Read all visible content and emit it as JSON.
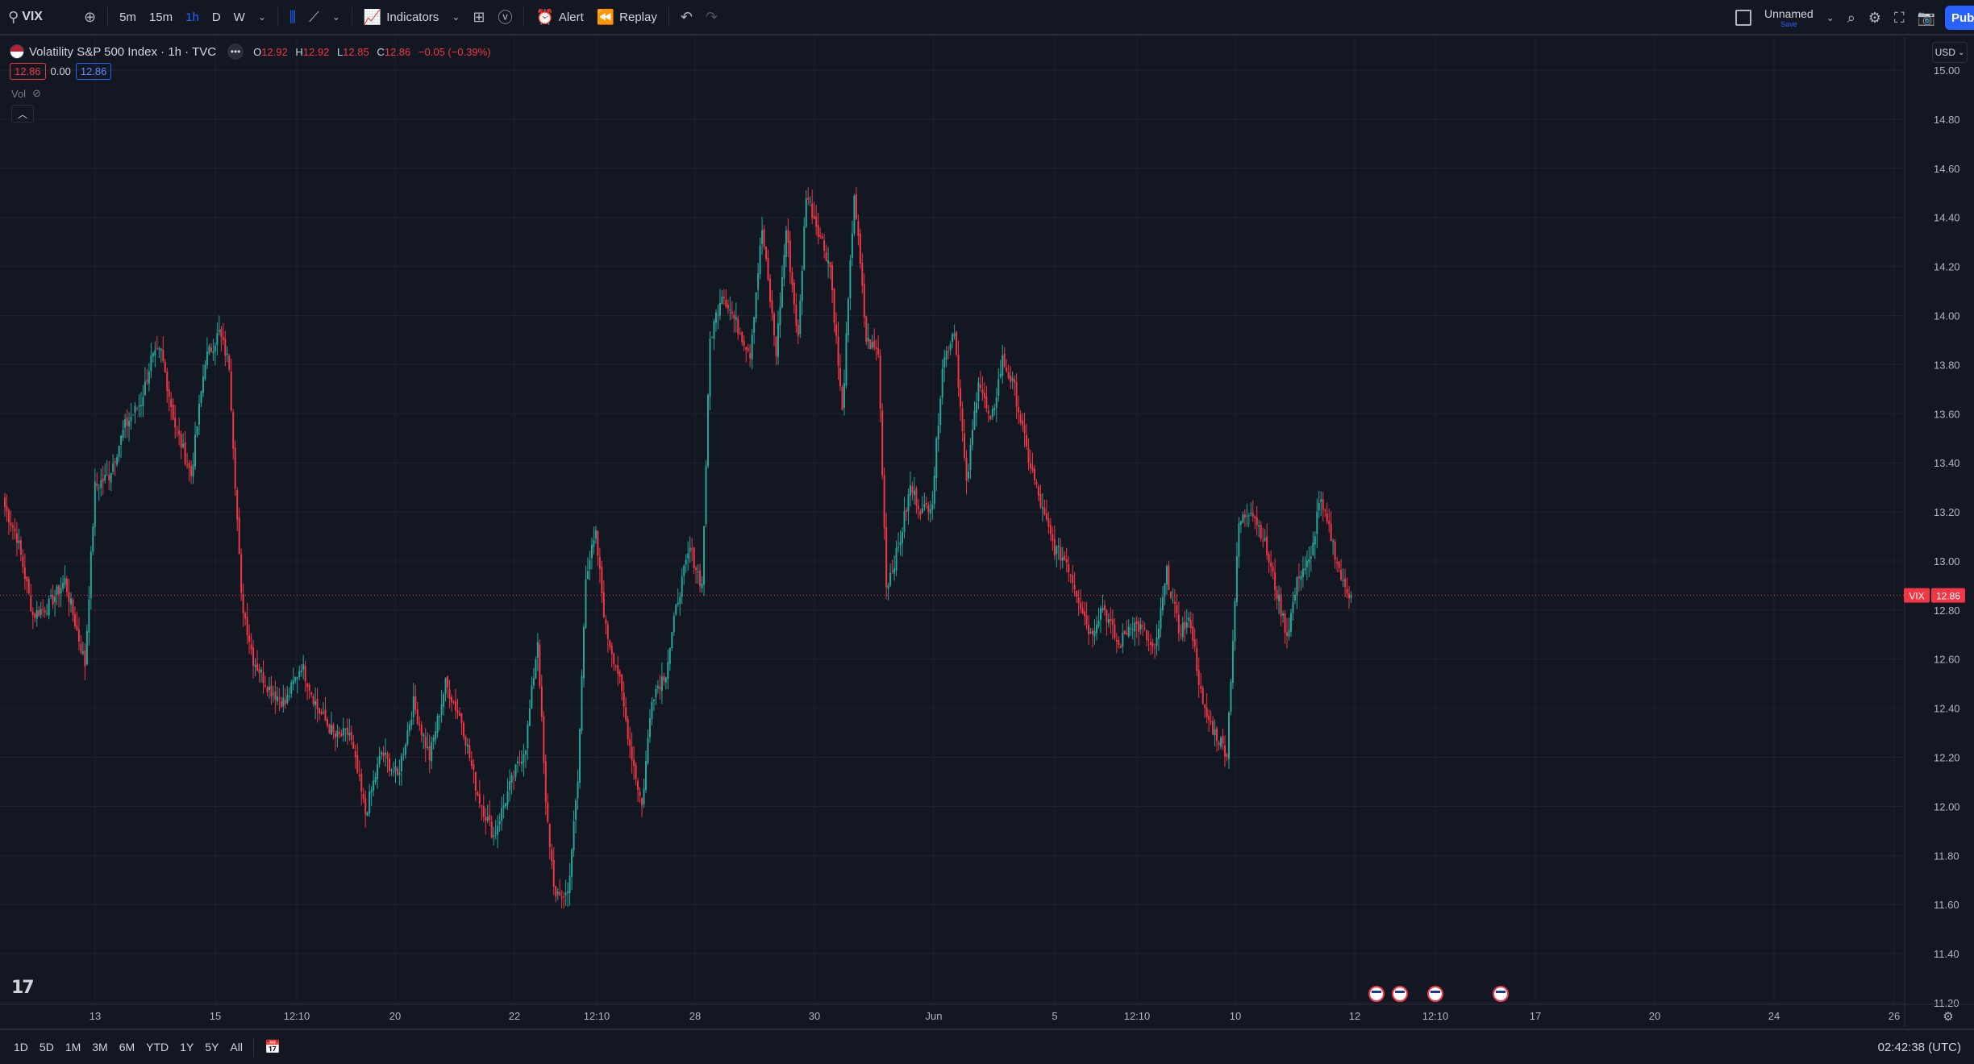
{
  "toolbar": {
    "symbol": "VIX",
    "intervals": [
      "5m",
      "15m",
      "1h",
      "D",
      "W"
    ],
    "selected_interval": "1h",
    "indicators_label": "Indicators",
    "alert_label": "Alert",
    "replay_label": "Replay",
    "layout_name": "Unnamed",
    "layout_save": "Save",
    "publish_label": "Pub"
  },
  "legend": {
    "title": "Volatility S&P 500 Index · 1h · TVC",
    "ohlc": [
      {
        "k": "O",
        "v": "12.92"
      },
      {
        "k": "H",
        "v": "12.92"
      },
      {
        "k": "L",
        "v": "12.85"
      },
      {
        "k": "C",
        "v": "12.86"
      }
    ],
    "change": "−0.05 (−0.39%)",
    "bid": "12.86",
    "spread": "0.00",
    "ask": "12.86",
    "vol_label": "Vol"
  },
  "currency": "USD",
  "chart_data": {
    "type": "candlestick",
    "title": "Volatility S&P 500 Index · 1h · TVC",
    "ylim": [
      11.2,
      15.2
    ],
    "y_ticks": [
      "15.00",
      "14.80",
      "14.60",
      "14.40",
      "14.20",
      "14.00",
      "13.80",
      "13.60",
      "13.40",
      "13.20",
      "13.00",
      "12.80",
      "12.60",
      "12.40",
      "12.20",
      "12.00",
      "11.80",
      "11.60",
      "11.40",
      "11.20"
    ],
    "x_ticks": [
      "13",
      "15",
      "12:10",
      "20",
      "22",
      "12:10",
      "28",
      "30",
      "Jun",
      "5",
      "12:10",
      "10",
      "12",
      "12:10",
      "17",
      "20",
      "24",
      "26"
    ],
    "last_price": 12.86,
    "last_price_label": "12.86",
    "symbol_tag": "VIX",
    "colors": {
      "up": "#26a69a",
      "down": "#f23645",
      "grid": "#1e222d",
      "text": "#b2b5be"
    },
    "anchors": [
      [
        0,
        13.22
      ],
      [
        6,
        13.1
      ],
      [
        14,
        12.78
      ],
      [
        22,
        12.82
      ],
      [
        30,
        12.92
      ],
      [
        40,
        12.58
      ],
      [
        45,
        13.3
      ],
      [
        52,
        13.35
      ],
      [
        60,
        13.55
      ],
      [
        68,
        13.65
      ],
      [
        73,
        13.82
      ],
      [
        78,
        13.85
      ],
      [
        85,
        13.55
      ],
      [
        93,
        13.35
      ],
      [
        100,
        13.82
      ],
      [
        107,
        13.93
      ],
      [
        112,
        13.8
      ],
      [
        118,
        12.85
      ],
      [
        124,
        12.6
      ],
      [
        132,
        12.48
      ],
      [
        140,
        12.42
      ],
      [
        148,
        12.58
      ],
      [
        156,
        12.4
      ],
      [
        165,
        12.28
      ],
      [
        172,
        12.3
      ],
      [
        180,
        11.97
      ],
      [
        188,
        12.22
      ],
      [
        196,
        12.12
      ],
      [
        204,
        12.42
      ],
      [
        212,
        12.2
      ],
      [
        220,
        12.5
      ],
      [
        228,
        12.35
      ],
      [
        236,
        12.05
      ],
      [
        244,
        11.88
      ],
      [
        252,
        12.08
      ],
      [
        260,
        12.25
      ],
      [
        266,
        12.68
      ],
      [
        270,
        12.0
      ],
      [
        275,
        11.62
      ],
      [
        281,
        11.65
      ],
      [
        286,
        12.1
      ],
      [
        290,
        12.95
      ],
      [
        295,
        13.1
      ],
      [
        300,
        12.72
      ],
      [
        306,
        12.55
      ],
      [
        312,
        12.25
      ],
      [
        318,
        12.0
      ],
      [
        323,
        12.45
      ],
      [
        330,
        12.55
      ],
      [
        336,
        12.85
      ],
      [
        342,
        13.05
      ],
      [
        348,
        12.9
      ],
      [
        352,
        13.9
      ],
      [
        358,
        14.1
      ],
      [
        366,
        13.95
      ],
      [
        372,
        13.85
      ],
      [
        378,
        14.35
      ],
      [
        385,
        13.85
      ],
      [
        390,
        14.35
      ],
      [
        396,
        13.9
      ],
      [
        400,
        14.5
      ],
      [
        406,
        14.35
      ],
      [
        412,
        14.2
      ],
      [
        418,
        13.6
      ],
      [
        424,
        14.5
      ],
      [
        430,
        13.9
      ],
      [
        436,
        13.85
      ],
      [
        440,
        12.9
      ],
      [
        446,
        13.05
      ],
      [
        452,
        13.3
      ],
      [
        458,
        13.2
      ],
      [
        463,
        13.25
      ],
      [
        468,
        13.8
      ],
      [
        474,
        13.95
      ],
      [
        480,
        13.3
      ],
      [
        486,
        13.75
      ],
      [
        492,
        13.55
      ],
      [
        498,
        13.82
      ],
      [
        504,
        13.7
      ],
      [
        510,
        13.45
      ],
      [
        518,
        13.2
      ],
      [
        524,
        13.05
      ],
      [
        530,
        13.0
      ],
      [
        536,
        12.85
      ],
      [
        542,
        12.7
      ],
      [
        548,
        12.82
      ],
      [
        556,
        12.65
      ],
      [
        562,
        12.75
      ],
      [
        568,
        12.72
      ],
      [
        574,
        12.62
      ],
      [
        580,
        12.95
      ],
      [
        586,
        12.72
      ],
      [
        592,
        12.75
      ],
      [
        598,
        12.4
      ],
      [
        604,
        12.3
      ],
      [
        610,
        12.22
      ],
      [
        616,
        13.15
      ],
      [
        622,
        13.22
      ],
      [
        628,
        13.1
      ],
      [
        634,
        12.9
      ],
      [
        640,
        12.7
      ],
      [
        646,
        12.95
      ],
      [
        652,
        13.0
      ],
      [
        656,
        13.25
      ],
      [
        662,
        13.1
      ],
      [
        668,
        12.9
      ],
      [
        672,
        12.86
      ]
    ]
  },
  "ranges": [
    "1D",
    "5D",
    "1M",
    "3M",
    "6M",
    "YTD",
    "1Y",
    "5Y",
    "All"
  ],
  "clock": "02:42:38 (UTC)"
}
